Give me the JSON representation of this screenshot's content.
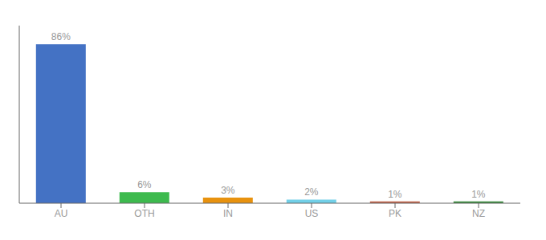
{
  "chart_data": {
    "type": "bar",
    "categories": [
      "AU",
      "OTH",
      "IN",
      "US",
      "PK",
      "NZ"
    ],
    "values": [
      86,
      6,
      3,
      2,
      1,
      1
    ],
    "value_labels": [
      "86%",
      "6%",
      "3%",
      "2%",
      "1%",
      "1%"
    ],
    "colors": [
      "#4472c4",
      "#3dba4e",
      "#e8920e",
      "#72d0e8",
      "#c0634a",
      "#3a8c3f"
    ],
    "ylim": [
      0,
      96
    ],
    "tick_labels": "x",
    "grid": false
  }
}
